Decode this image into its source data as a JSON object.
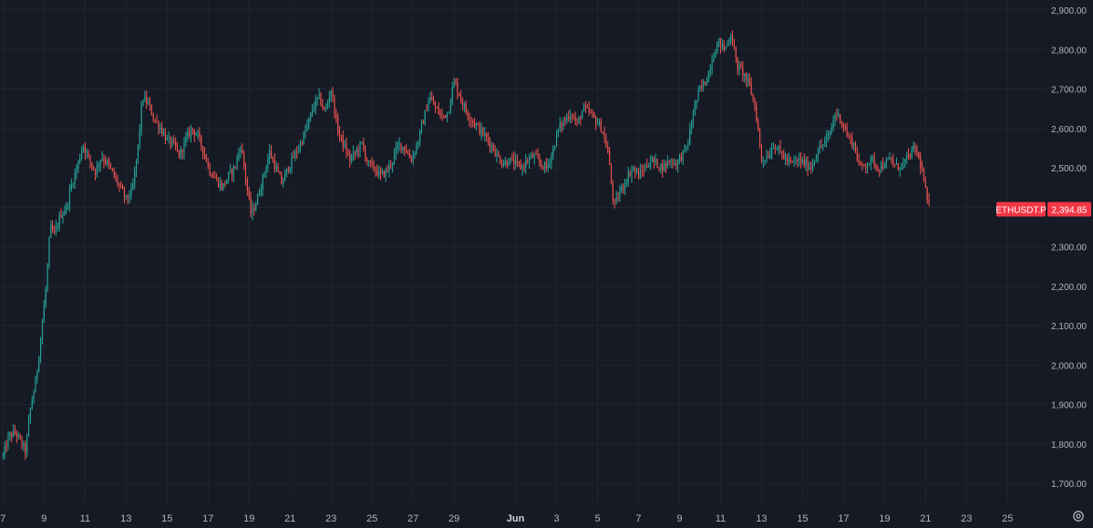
{
  "chart_data": {
    "type": "candlestick",
    "symbol": "ETHUSDT.P",
    "last_price": "2,394.85",
    "ylim": [
      1650,
      2920
    ],
    "y_ticks": [
      "1,700.00",
      "1,800.00",
      "1,900.00",
      "2,000.00",
      "2,100.00",
      "2,200.00",
      "2,300.00",
      "2,400.00",
      "2,500.00",
      "2,600.00",
      "2,700.00",
      "2,800.00",
      "2,900.00"
    ],
    "y_tick_values": [
      1700,
      1800,
      1900,
      2000,
      2100,
      2200,
      2300,
      2400,
      2500,
      2600,
      2700,
      2800,
      2900
    ],
    "x_ticks": [
      {
        "label": "7",
        "day": 7
      },
      {
        "label": "9",
        "day": 9
      },
      {
        "label": "11",
        "day": 11
      },
      {
        "label": "13",
        "day": 13
      },
      {
        "label": "15",
        "day": 15
      },
      {
        "label": "17",
        "day": 17
      },
      {
        "label": "19",
        "day": 19
      },
      {
        "label": "21",
        "day": 21
      },
      {
        "label": "23",
        "day": 23
      },
      {
        "label": "25",
        "day": 25
      },
      {
        "label": "27",
        "day": 27
      },
      {
        "label": "29",
        "day": 29
      },
      {
        "label": "Jun",
        "day": 32,
        "bold": true
      },
      {
        "label": "3",
        "day": 34
      },
      {
        "label": "5",
        "day": 36
      },
      {
        "label": "7",
        "day": 38
      },
      {
        "label": "9",
        "day": 40
      },
      {
        "label": "11",
        "day": 42
      },
      {
        "label": "13",
        "day": 44
      },
      {
        "label": "15",
        "day": 46
      },
      {
        "label": "17",
        "day": 48
      },
      {
        "label": "19",
        "day": 50
      },
      {
        "label": "21",
        "day": 52
      },
      {
        "label": "23",
        "day": 54
      },
      {
        "label": "25",
        "day": 56
      }
    ],
    "day_range": [
      6.85,
      57.9
    ],
    "price_path": [
      [
        7.0,
        1770
      ],
      [
        7.3,
        1820
      ],
      [
        7.6,
        1830
      ],
      [
        7.9,
        1800
      ],
      [
        8.1,
        1780
      ],
      [
        8.3,
        1880
      ],
      [
        8.6,
        1960
      ],
      [
        8.9,
        2100
      ],
      [
        9.1,
        2200
      ],
      [
        9.3,
        2350
      ],
      [
        9.5,
        2330
      ],
      [
        9.8,
        2380
      ],
      [
        10.1,
        2400
      ],
      [
        10.3,
        2450
      ],
      [
        10.6,
        2500
      ],
      [
        10.9,
        2560
      ],
      [
        11.2,
        2520
      ],
      [
        11.5,
        2490
      ],
      [
        11.8,
        2530
      ],
      [
        12.1,
        2510
      ],
      [
        12.4,
        2480
      ],
      [
        12.7,
        2450
      ],
      [
        13.0,
        2420
      ],
      [
        13.3,
        2440
      ],
      [
        13.6,
        2560
      ],
      [
        13.8,
        2680
      ],
      [
        14.1,
        2660
      ],
      [
        14.4,
        2620
      ],
      [
        14.7,
        2600
      ],
      [
        15.0,
        2570
      ],
      [
        15.3,
        2560
      ],
      [
        15.6,
        2530
      ],
      [
        15.9,
        2570
      ],
      [
        16.2,
        2600
      ],
      [
        16.5,
        2580
      ],
      [
        16.8,
        2540
      ],
      [
        17.1,
        2490
      ],
      [
        17.4,
        2470
      ],
      [
        17.7,
        2450
      ],
      [
        18.0,
        2480
      ],
      [
        18.3,
        2500
      ],
      [
        18.6,
        2560
      ],
      [
        18.9,
        2450
      ],
      [
        19.1,
        2380
      ],
      [
        19.4,
        2420
      ],
      [
        19.7,
        2480
      ],
      [
        20.0,
        2540
      ],
      [
        20.3,
        2500
      ],
      [
        20.6,
        2460
      ],
      [
        20.9,
        2500
      ],
      [
        21.2,
        2530
      ],
      [
        21.5,
        2560
      ],
      [
        21.8,
        2600
      ],
      [
        22.1,
        2650
      ],
      [
        22.4,
        2680
      ],
      [
        22.7,
        2640
      ],
      [
        23.0,
        2700
      ],
      [
        23.3,
        2600
      ],
      [
        23.6,
        2560
      ],
      [
        23.9,
        2520
      ],
      [
        24.2,
        2540
      ],
      [
        24.5,
        2560
      ],
      [
        24.8,
        2510
      ],
      [
        25.1,
        2500
      ],
      [
        25.4,
        2480
      ],
      [
        25.7,
        2490
      ],
      [
        26.0,
        2520
      ],
      [
        26.3,
        2560
      ],
      [
        26.6,
        2550
      ],
      [
        26.9,
        2520
      ],
      [
        27.2,
        2560
      ],
      [
        27.5,
        2620
      ],
      [
        27.8,
        2680
      ],
      [
        28.1,
        2650
      ],
      [
        28.4,
        2630
      ],
      [
        28.7,
        2640
      ],
      [
        29.0,
        2720
      ],
      [
        29.3,
        2680
      ],
      [
        29.6,
        2640
      ],
      [
        29.9,
        2620
      ],
      [
        30.2,
        2600
      ],
      [
        30.5,
        2580
      ],
      [
        30.8,
        2560
      ],
      [
        31.1,
        2530
      ],
      [
        31.4,
        2510
      ],
      [
        31.7,
        2520
      ],
      [
        32.0,
        2510
      ],
      [
        32.3,
        2500
      ],
      [
        32.6,
        2520
      ],
      [
        32.9,
        2530
      ],
      [
        33.2,
        2510
      ],
      [
        33.5,
        2500
      ],
      [
        33.8,
        2540
      ],
      [
        34.1,
        2600
      ],
      [
        34.4,
        2620
      ],
      [
        34.7,
        2640
      ],
      [
        35.0,
        2610
      ],
      [
        35.3,
        2650
      ],
      [
        35.6,
        2640
      ],
      [
        35.9,
        2620
      ],
      [
        36.2,
        2600
      ],
      [
        36.5,
        2540
      ],
      [
        36.8,
        2400
      ],
      [
        37.1,
        2440
      ],
      [
        37.4,
        2470
      ],
      [
        37.7,
        2500
      ],
      [
        38.0,
        2480
      ],
      [
        38.3,
        2500
      ],
      [
        38.6,
        2520
      ],
      [
        38.9,
        2510
      ],
      [
        39.2,
        2500
      ],
      [
        39.5,
        2520
      ],
      [
        39.8,
        2510
      ],
      [
        40.1,
        2530
      ],
      [
        40.4,
        2560
      ],
      [
        40.7,
        2650
      ],
      [
        41.0,
        2700
      ],
      [
        41.3,
        2720
      ],
      [
        41.6,
        2780
      ],
      [
        41.9,
        2820
      ],
      [
        42.2,
        2800
      ],
      [
        42.5,
        2840
      ],
      [
        42.8,
        2760
      ],
      [
        43.1,
        2740
      ],
      [
        43.4,
        2710
      ],
      [
        43.7,
        2650
      ],
      [
        44.0,
        2520
      ],
      [
        44.3,
        2530
      ],
      [
        44.6,
        2560
      ],
      [
        44.9,
        2540
      ],
      [
        45.2,
        2520
      ],
      [
        45.5,
        2510
      ],
      [
        45.8,
        2520
      ],
      [
        46.1,
        2510
      ],
      [
        46.4,
        2500
      ],
      [
        46.7,
        2540
      ],
      [
        47.0,
        2560
      ],
      [
        47.3,
        2580
      ],
      [
        47.6,
        2640
      ],
      [
        47.9,
        2620
      ],
      [
        48.2,
        2580
      ],
      [
        48.5,
        2560
      ],
      [
        48.8,
        2500
      ],
      [
        49.1,
        2510
      ],
      [
        49.4,
        2520
      ],
      [
        49.7,
        2500
      ],
      [
        50.0,
        2510
      ],
      [
        50.3,
        2520
      ],
      [
        50.6,
        2500
      ],
      [
        50.9,
        2510
      ],
      [
        51.2,
        2530
      ],
      [
        51.5,
        2550
      ],
      [
        51.8,
        2500
      ],
      [
        52.1,
        2410
      ],
      [
        52.2,
        2395
      ]
    ]
  },
  "ui": {
    "settings_icon": "gear-icon"
  },
  "colors": {
    "background": "#161a25",
    "up": "#26a69a",
    "down": "#ef5350",
    "grid": "#1f2430",
    "axis_text": "#b2b5be",
    "price_tag_bg": "#f23645"
  }
}
